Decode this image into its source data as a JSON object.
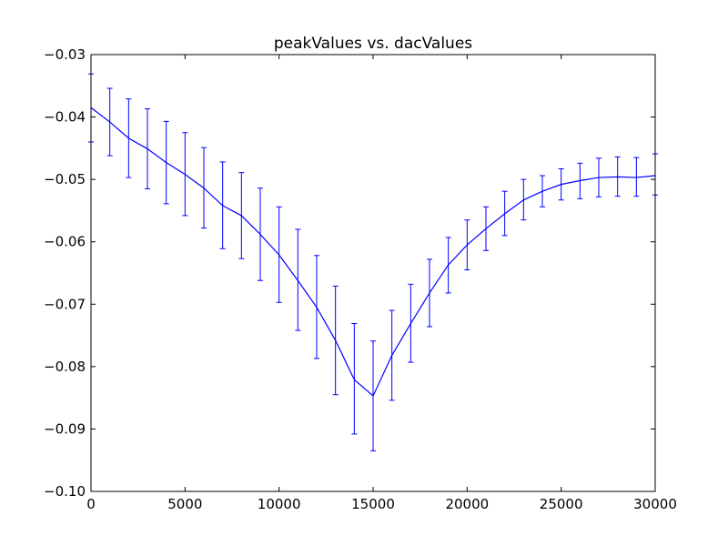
{
  "chart_data": {
    "type": "line",
    "title": "peakValues vs. dacValues",
    "xlabel": "",
    "ylabel": "",
    "xlim": [
      0,
      30000
    ],
    "ylim": [
      -0.1,
      -0.03
    ],
    "grid": false,
    "error_bars": true,
    "x_ticks": [
      0,
      5000,
      10000,
      15000,
      20000,
      25000,
      30000
    ],
    "x_tick_labels": [
      "0",
      "5000",
      "10000",
      "15000",
      "20000",
      "25000",
      "30000"
    ],
    "y_ticks": [
      -0.1,
      -0.09,
      -0.08,
      -0.07,
      -0.06,
      -0.05,
      -0.04,
      -0.03
    ],
    "y_tick_labels": [
      "−0.10",
      "−0.09",
      "−0.08",
      "−0.07",
      "−0.06",
      "−0.05",
      "−0.04",
      "−0.03"
    ],
    "series": [
      {
        "color": "#0000ff",
        "x": [
          0,
          1000,
          2000,
          3000,
          4000,
          5000,
          6000,
          7000,
          8000,
          9000,
          10000,
          11000,
          12000,
          13000,
          14000,
          15000,
          16000,
          17000,
          18000,
          19000,
          20000,
          21000,
          22000,
          23000,
          24000,
          25000,
          26000,
          27000,
          28000,
          29000,
          30000
        ],
        "y": [
          -0.0385,
          -0.0408,
          -0.0434,
          -0.0451,
          -0.0473,
          -0.0492,
          -0.0514,
          -0.0542,
          -0.0558,
          -0.0588,
          -0.0621,
          -0.0662,
          -0.0705,
          -0.0758,
          -0.0821,
          -0.0847,
          -0.0782,
          -0.0731,
          -0.0682,
          -0.0637,
          -0.0605,
          -0.0579,
          -0.0555,
          -0.0533,
          -0.0519,
          -0.0508,
          -0.0502,
          -0.0497,
          -0.0496,
          -0.0497,
          -0.0494
        ],
        "err_low": [
          -0.044,
          -0.0462,
          -0.0497,
          -0.0515,
          -0.0539,
          -0.0558,
          -0.0578,
          -0.0611,
          -0.0627,
          -0.0662,
          -0.0697,
          -0.0742,
          -0.0787,
          -0.0845,
          -0.0908,
          -0.0935,
          -0.0854,
          -0.0793,
          -0.0736,
          -0.0682,
          -0.0645,
          -0.0614,
          -0.059,
          -0.0565,
          -0.0544,
          -0.0533,
          -0.0531,
          -0.0528,
          -0.0527,
          -0.0527,
          -0.0525
        ],
        "err_high": [
          -0.0331,
          -0.0354,
          -0.0371,
          -0.0387,
          -0.0407,
          -0.0425,
          -0.0449,
          -0.0472,
          -0.0489,
          -0.0514,
          -0.0544,
          -0.058,
          -0.0622,
          -0.0671,
          -0.0731,
          -0.0759,
          -0.071,
          -0.0668,
          -0.0628,
          -0.0593,
          -0.0565,
          -0.0544,
          -0.0519,
          -0.05,
          -0.0494,
          -0.0483,
          -0.0474,
          -0.0466,
          -0.0464,
          -0.0465,
          -0.0459
        ]
      }
    ]
  }
}
